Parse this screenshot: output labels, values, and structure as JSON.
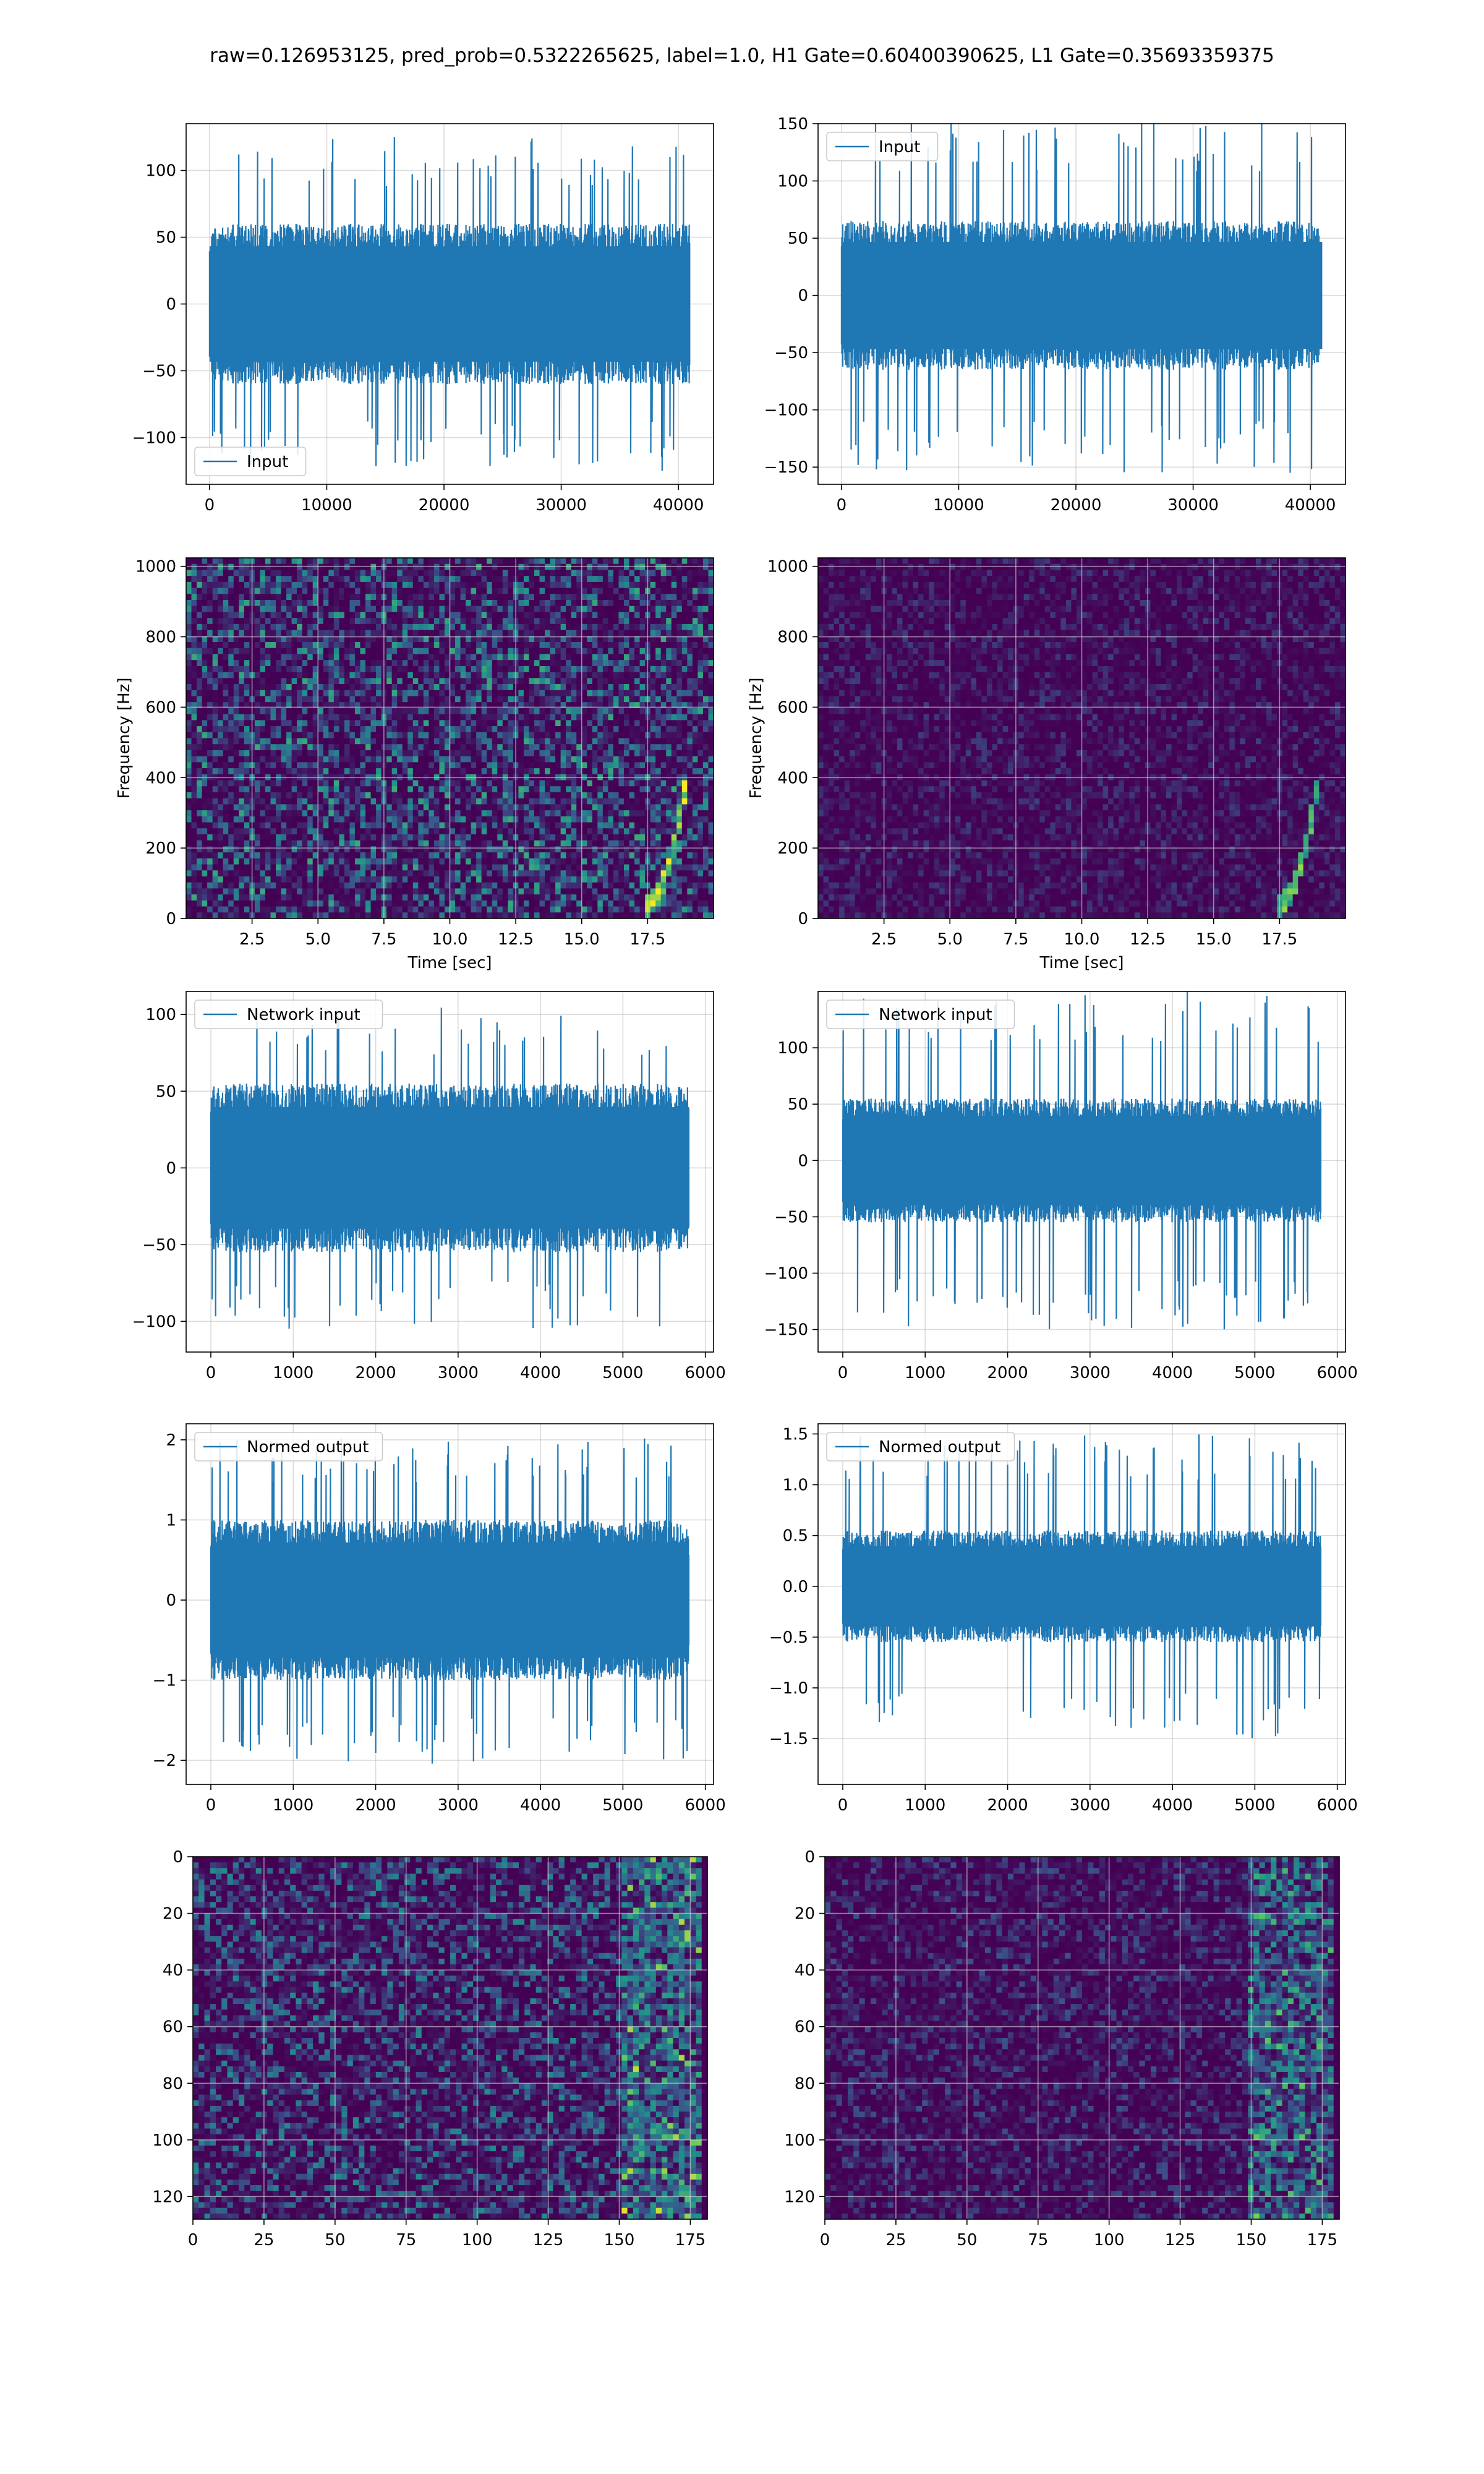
{
  "figure_title": "raw=0.126953125, pred_prob=0.5322265625, label=1.0, H1 Gate=0.60400390625, L1 Gate=0.35693359375",
  "chart_data": [
    {
      "id": "p1",
      "type": "line",
      "title": "",
      "xlabel": "",
      "ylabel": "",
      "xlim": [
        -2000,
        43000
      ],
      "ylim": [
        -135,
        135
      ],
      "xticks": [
        0,
        10000,
        20000,
        30000,
        40000
      ],
      "yticks": [
        -100,
        -50,
        0,
        50,
        100
      ],
      "grid": true,
      "legend": {
        "position": "lower-left",
        "entries": [
          "Input"
        ]
      },
      "series": [
        {
          "name": "Input",
          "n": 40960,
          "x_range": [
            0,
            40960
          ],
          "core_amplitude": 60,
          "peak_amplitude": 125,
          "seed": 11
        }
      ]
    },
    {
      "id": "p2",
      "type": "line",
      "title": "",
      "xlabel": "",
      "ylabel": "",
      "xlim": [
        -2000,
        43000
      ],
      "ylim": [
        -165,
        150
      ],
      "xticks": [
        0,
        10000,
        20000,
        30000,
        40000
      ],
      "yticks": [
        -150,
        -100,
        -50,
        0,
        50,
        100,
        150
      ],
      "grid": true,
      "legend": {
        "position": "upper-left",
        "entries": [
          "Input"
        ]
      },
      "series": [
        {
          "name": "Input",
          "n": 40960,
          "x_range": [
            0,
            40960
          ],
          "core_amplitude": 65,
          "peak_amplitude": 155,
          "seed": 23
        }
      ]
    },
    {
      "id": "p3",
      "type": "heatmap",
      "title": "",
      "xlabel": "Time [sec]",
      "ylabel": "Frequency [Hz]",
      "xlim": [
        0,
        20
      ],
      "ylim": [
        0,
        1024
      ],
      "xticks": [
        2.5,
        5.0,
        7.5,
        10.0,
        12.5,
        15.0,
        17.5
      ],
      "xtick_labels": [
        "2.5",
        "5.0",
        "7.5",
        "10.0",
        "12.5",
        "15.0",
        "17.5"
      ],
      "yticks": [
        0,
        200,
        400,
        600,
        800,
        1000
      ],
      "grid": true,
      "colormap": "viridis",
      "noise_level": 0.38,
      "chirp": true,
      "seed": 31
    },
    {
      "id": "p4",
      "type": "heatmap",
      "title": "",
      "xlabel": "Time [sec]",
      "ylabel": "Frequency [Hz]",
      "xlim": [
        0,
        20
      ],
      "ylim": [
        0,
        1024
      ],
      "xticks": [
        2.5,
        5.0,
        7.5,
        10.0,
        12.5,
        15.0,
        17.5
      ],
      "xtick_labels": [
        "2.5",
        "5.0",
        "7.5",
        "10.0",
        "12.5",
        "15.0",
        "17.5"
      ],
      "yticks": [
        0,
        200,
        400,
        600,
        800,
        1000
      ],
      "grid": true,
      "colormap": "viridis",
      "noise_level": 0.12,
      "chirp": true,
      "seed": 47
    },
    {
      "id": "p5",
      "type": "line",
      "title": "",
      "xlabel": "",
      "ylabel": "",
      "xlim": [
        -300,
        6100
      ],
      "ylim": [
        -120,
        115
      ],
      "xticks": [
        0,
        1000,
        2000,
        3000,
        4000,
        5000,
        6000
      ],
      "yticks": [
        -100,
        -50,
        0,
        50,
        100
      ],
      "grid": true,
      "legend": {
        "position": "upper-left",
        "entries": [
          "Network input"
        ]
      },
      "series": [
        {
          "name": "Network input",
          "n": 5800,
          "x_range": [
            0,
            5800
          ],
          "core_amplitude": 55,
          "peak_amplitude": 105,
          "seed": 53
        }
      ]
    },
    {
      "id": "p6",
      "type": "line",
      "title": "",
      "xlabel": "",
      "ylabel": "",
      "xlim": [
        -300,
        6100
      ],
      "ylim": [
        -170,
        150
      ],
      "xticks": [
        0,
        1000,
        2000,
        3000,
        4000,
        5000,
        6000
      ],
      "yticks": [
        -150,
        -100,
        -50,
        0,
        50,
        100
      ],
      "grid": true,
      "legend": {
        "position": "upper-left",
        "entries": [
          "Network input"
        ]
      },
      "series": [
        {
          "name": "Network input",
          "n": 5800,
          "x_range": [
            0,
            5800
          ],
          "core_amplitude": 55,
          "peak_amplitude": 150,
          "seed": 61
        }
      ]
    },
    {
      "id": "p7",
      "type": "line",
      "title": "",
      "xlabel": "",
      "ylabel": "",
      "xlim": [
        -300,
        6100
      ],
      "ylim": [
        -2.3,
        2.2
      ],
      "xticks": [
        0,
        1000,
        2000,
        3000,
        4000,
        5000,
        6000
      ],
      "yticks": [
        -2,
        -1,
        0,
        1,
        2
      ],
      "grid": true,
      "legend": {
        "position": "upper-left",
        "entries": [
          "Normed output"
        ]
      },
      "series": [
        {
          "name": "Normed output",
          "n": 5800,
          "x_range": [
            0,
            5800
          ],
          "core_amplitude": 1.0,
          "peak_amplitude": 2.05,
          "seed": 71
        }
      ]
    },
    {
      "id": "p8",
      "type": "line",
      "title": "",
      "xlabel": "",
      "ylabel": "",
      "xlim": [
        -300,
        6100
      ],
      "ylim": [
        -1.95,
        1.6
      ],
      "xticks": [
        0,
        1000,
        2000,
        3000,
        4000,
        5000,
        6000
      ],
      "yticks": [
        -1.5,
        -1.0,
        -0.5,
        0.0,
        0.5,
        1.0,
        1.5
      ],
      "ytick_labels": [
        "−1.5",
        "−1.0",
        "−0.5",
        "0.0",
        "0.5",
        "1.0",
        "1.5"
      ],
      "grid": true,
      "legend": {
        "position": "upper-left",
        "entries": [
          "Normed output"
        ]
      },
      "series": [
        {
          "name": "Normed output",
          "n": 5800,
          "x_range": [
            0,
            5800
          ],
          "core_amplitude": 0.55,
          "peak_amplitude": 1.5,
          "seed": 83
        }
      ]
    },
    {
      "id": "p9",
      "type": "heatmap",
      "title": "",
      "xlabel": "",
      "ylabel": "",
      "xlim": [
        0,
        181
      ],
      "ylim": [
        128,
        0
      ],
      "xticks": [
        0,
        25,
        50,
        75,
        100,
        125,
        150,
        175
      ],
      "yticks": [
        0,
        20,
        40,
        60,
        80,
        100,
        120
      ],
      "grid": true,
      "colormap": "viridis",
      "rows": 128,
      "cols": 181,
      "noise_level": 0.3,
      "hot_cols_start": 150,
      "seed": 97
    },
    {
      "id": "p10",
      "type": "heatmap",
      "title": "",
      "xlabel": "",
      "ylabel": "",
      "xlim": [
        0,
        181
      ],
      "ylim": [
        128,
        0
      ],
      "xticks": [
        0,
        25,
        50,
        75,
        100,
        125,
        150,
        175
      ],
      "yticks": [
        0,
        20,
        40,
        60,
        80,
        100,
        120
      ],
      "grid": true,
      "colormap": "viridis",
      "rows": 128,
      "cols": 181,
      "noise_level": 0.16,
      "hot_cols_start": 148,
      "seed": 109
    }
  ]
}
